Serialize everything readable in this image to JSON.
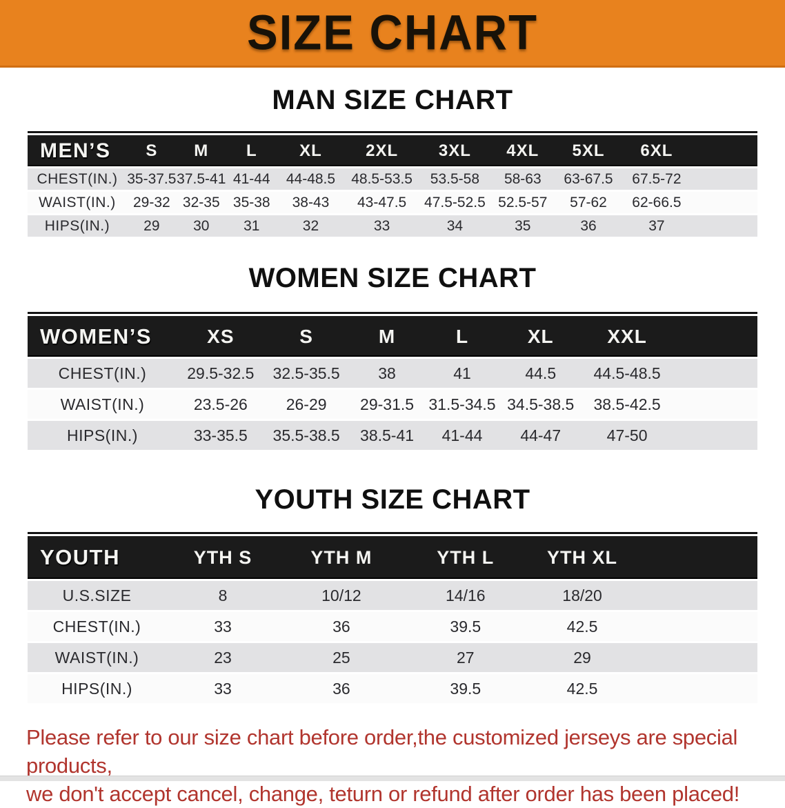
{
  "banner": {
    "title": "SIZE CHART"
  },
  "colors": {
    "banner-bg": "#e8821e",
    "banner-edge": "#d06f12",
    "title-color": "#181208",
    "header-bg": "#1b1b1b",
    "header-fg": "#f4f4f1",
    "row-shade": "#e2e2e4",
    "row-plain": "#fbfbfb",
    "disclaimer-color": "#b1352e"
  },
  "sections": [
    {
      "heading": "MAN SIZE CHART",
      "table": {
        "header_label": "MEN’S",
        "columns": [
          "S",
          "M",
          "L",
          "XL",
          "2XL",
          "3XL",
          "4XL",
          "5XL",
          "6XL"
        ],
        "rows": [
          {
            "label": "CHEST(IN.)",
            "values": [
              "35-37.5",
              "37.5-41",
              "41-44",
              "44-48.5",
              "48.5-53.5",
              "53.5-58",
              "58-63",
              "63-67.5",
              "67.5-72"
            ]
          },
          {
            "label": "WAIST(IN.)",
            "values": [
              "29-32",
              "32-35",
              "35-38",
              "38-43",
              "43-47.5",
              "47.5-52.5",
              "52.5-57",
              "57-62",
              "62-66.5"
            ]
          },
          {
            "label": "HIPS(IN.)",
            "values": [
              "29",
              "30",
              "31",
              "32",
              "33",
              "34",
              "35",
              "36",
              "37"
            ]
          }
        ]
      }
    },
    {
      "heading": "WOMEN SIZE CHART",
      "table": {
        "header_label": "WOMEN’S",
        "columns": [
          "XS",
          "S",
          "M",
          "L",
          "XL",
          "XXL"
        ],
        "rows": [
          {
            "label": "CHEST(IN.)",
            "values": [
              "29.5-32.5",
              "32.5-35.5",
              "38",
              "41",
              "44.5",
              "44.5-48.5"
            ]
          },
          {
            "label": "WAIST(IN.)",
            "values": [
              "23.5-26",
              "26-29",
              "29-31.5",
              "31.5-34.5",
              "34.5-38.5",
              "38.5-42.5"
            ]
          },
          {
            "label": "HIPS(IN.)",
            "values": [
              "33-35.5",
              "35.5-38.5",
              "38.5-41",
              "41-44",
              "44-47",
              "47-50"
            ]
          }
        ]
      }
    },
    {
      "heading": "YOUTH SIZE CHART",
      "table": {
        "header_label": "YOUTH",
        "columns": [
          "YTH S",
          "YTH M",
          "YTH L",
          "YTH XL"
        ],
        "rows": [
          {
            "label": "U.S.SIZE",
            "values": [
              "8",
              "10/12",
              "14/16",
              "18/20"
            ]
          },
          {
            "label": "CHEST(IN.)",
            "values": [
              "33",
              "36",
              "39.5",
              "42.5"
            ]
          },
          {
            "label": "WAIST(IN.)",
            "values": [
              "23",
              "25",
              "27",
              "29"
            ]
          },
          {
            "label": "HIPS(IN.)",
            "values": [
              "33",
              "36",
              "39.5",
              "42.5"
            ]
          }
        ]
      }
    }
  ],
  "disclaimer": {
    "line1": "Please refer to our size chart before order,the customized jerseys are special products,",
    "line2": "we don't accept cancel, change, teturn or refund after order has been placed!"
  }
}
